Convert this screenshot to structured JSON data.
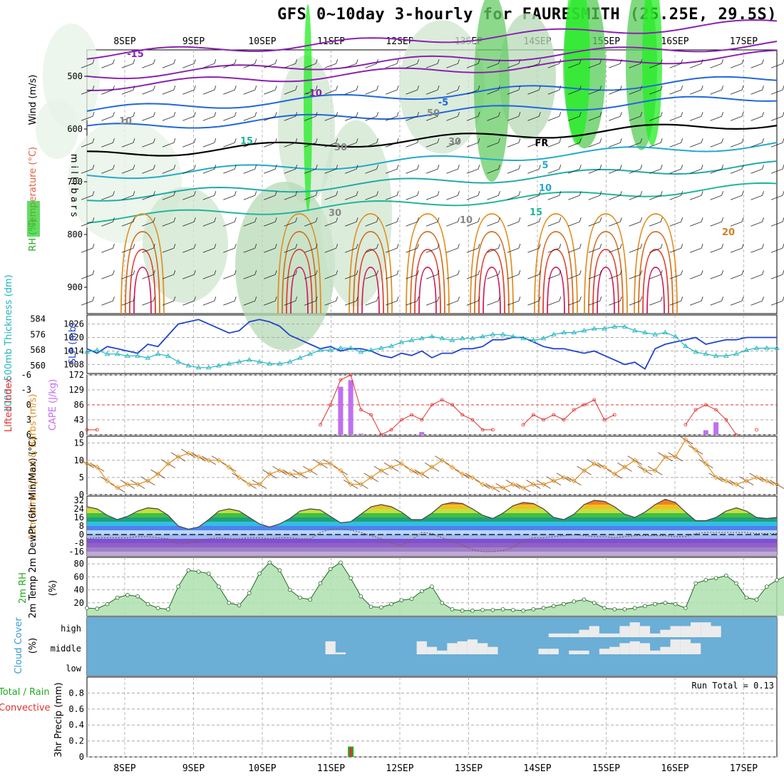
{
  "header": {
    "title": "GFS 0~10day 3-hourly for FAURESMITH (25.25E, 29.5S)"
  },
  "colors": {
    "slp": "#2244cc",
    "thickness": "#22b5c0",
    "lifted": "#e03030",
    "cape": "#c070f0",
    "wind10": "#e09020",
    "barb": "#7a5030",
    "rh2m": "#22aa22",
    "cloud_bg": "#6baed6",
    "cloud_fill": "#ececec",
    "rain_total": "#22aa22",
    "rain_conv": "#e03030",
    "temp_purple": "#8040c0",
    "freezing": "#000000"
  },
  "icons": {
    "rh_legend": "rh-color-swatch-icon"
  },
  "chart_data": [
    {
      "id": "upper",
      "type": "heatmap",
      "x_dates": [
        "8SEP",
        "9SEP",
        "10SEP",
        "11SEP",
        "12SEP",
        "13SEP",
        "14SEP",
        "15SEP",
        "16SEP",
        "17SEP"
      ],
      "ylim": [
        950,
        450
      ],
      "yticks": [
        500,
        600,
        700,
        800,
        900
      ],
      "ylabel_left": [
        "RH (%)",
        "Temperature (°C)",
        "Wind (m/s)"
      ],
      "ylabel_right": "millibars",
      "annotations": [
        "-15",
        "-10",
        "-5",
        "FR",
        "5",
        "10",
        "15",
        "20",
        "15",
        "10",
        "30",
        "30",
        "50",
        "30",
        "10"
      ]
    },
    {
      "id": "slp",
      "type": "line",
      "ylabel_left": "1000~500mb Thickness (dm)",
      "ylabel_right": "SLP (mb)",
      "yticks_left": [
        560,
        568,
        576,
        584
      ],
      "yticks_right": [
        1008,
        1014,
        1020,
        1026
      ],
      "series": [
        {
          "name": "SLP (mb)",
          "values": [
            1015,
            1013,
            1016,
            1015,
            1014,
            1013,
            1017,
            1016,
            1021,
            1026,
            1027,
            1028,
            1026,
            1024,
            1022,
            1023,
            1027,
            1028,
            1027,
            1025,
            1021,
            1019,
            1017,
            1015,
            1016,
            1014,
            1015,
            1015,
            1014,
            1012,
            1011,
            1013,
            1012,
            1014,
            1011,
            1013,
            1013,
            1015,
            1015,
            1016,
            1019,
            1019,
            1020,
            1020,
            1018,
            1016,
            1015,
            1015,
            1014,
            1013,
            1014,
            1012,
            1010,
            1008,
            1009,
            1006,
            1015,
            1017,
            1018,
            1019,
            1020,
            1017,
            1018,
            1019,
            1019,
            1020,
            1020,
            1020,
            1020
          ]
        },
        {
          "name": "1000~500mb Thickness (dm)",
          "values": [
            567,
            568,
            566,
            566,
            565,
            565,
            564,
            566,
            565,
            562,
            560,
            559,
            559,
            560,
            561,
            562,
            563,
            562,
            561,
            561,
            562,
            564,
            566,
            568,
            568,
            569,
            569,
            567,
            568,
            569,
            570,
            572,
            573,
            574,
            575,
            574,
            573,
            574,
            574,
            575,
            576,
            576,
            575,
            574,
            573,
            574,
            576,
            577,
            577,
            578,
            579,
            579,
            580,
            580,
            578,
            577,
            576,
            577,
            575,
            570,
            567,
            566,
            565,
            565,
            566,
            568,
            569,
            569,
            569
          ]
        }
      ]
    },
    {
      "id": "cape",
      "type": "bar",
      "ylabel_left": "Lifted Index",
      "ylabel_right": "CAPE (J/kg)",
      "yticks_left": [
        -6,
        -3,
        0,
        3,
        6
      ],
      "yticks_right": [
        0,
        43,
        86,
        129,
        172
      ],
      "series": [
        {
          "name": "Lifted Index",
          "values": [
            5,
            5,
            null,
            null,
            null,
            null,
            null,
            null,
            null,
            null,
            null,
            null,
            null,
            null,
            null,
            null,
            null,
            null,
            null,
            null,
            null,
            null,
            null,
            4,
            0,
            -5,
            -6,
            1,
            2,
            6,
            5,
            3,
            2,
            3,
            0,
            -1,
            0,
            2,
            3,
            5,
            5,
            null,
            null,
            4,
            2,
            3,
            2,
            3,
            1,
            0,
            -1,
            3,
            2,
            null,
            null,
            null,
            null,
            null,
            null,
            4,
            1,
            0,
            1,
            3,
            6,
            null,
            5,
            null,
            null
          ]
        },
        {
          "name": "CAPE (J/kg)",
          "values": [
            0,
            0,
            0,
            0,
            0,
            0,
            0,
            0,
            0,
            0,
            0,
            0,
            0,
            0,
            0,
            0,
            0,
            0,
            0,
            0,
            0,
            0,
            0,
            0,
            0,
            138,
            157,
            3,
            0,
            0,
            0,
            0,
            0,
            8,
            0,
            0,
            0,
            0,
            0,
            0,
            0,
            0,
            0,
            0,
            0,
            0,
            0,
            0,
            0,
            0,
            0,
            0,
            0,
            0,
            0,
            0,
            0,
            0,
            0,
            0,
            0,
            13,
            36,
            0,
            0,
            0,
            0,
            0,
            0
          ]
        }
      ]
    },
    {
      "id": "wind10",
      "type": "line",
      "ylabel_left": "10m Wind Speed & Barbs (m/s)",
      "yticks": [
        0,
        5,
        10,
        15
      ],
      "series": [
        {
          "name": "10m Wind Speed",
          "values": [
            9,
            8,
            4,
            2,
            3,
            3,
            4,
            6,
            9,
            11,
            12,
            11,
            10,
            10,
            8,
            5,
            3,
            3,
            6,
            7,
            6,
            6,
            7,
            9,
            9,
            7,
            3,
            3,
            5,
            7,
            8,
            9,
            7,
            6,
            8,
            10,
            8,
            6,
            5,
            3,
            2,
            2,
            3,
            2,
            3,
            3,
            4,
            5,
            4,
            7,
            9,
            8,
            6,
            8,
            10,
            7,
            7,
            11,
            11,
            16,
            13,
            9,
            5,
            4,
            3,
            4,
            5,
            4,
            3
          ]
        }
      ]
    },
    {
      "id": "temp2m",
      "type": "area",
      "ylabel_left": "2m Temp 2m DewPt (6hr Min/Max) (°C)",
      "yticks": [
        -16,
        -8,
        0,
        8,
        16,
        24,
        32
      ],
      "series": [
        {
          "name": "2m Temp",
          "values": [
            26,
            24,
            18,
            14,
            17,
            22,
            25,
            24,
            18,
            8,
            5,
            7,
            14,
            22,
            24,
            22,
            16,
            10,
            7,
            10,
            15,
            22,
            24,
            23,
            17,
            11,
            12,
            19,
            26,
            28,
            26,
            21,
            14,
            14,
            20,
            28,
            30,
            29,
            24,
            18,
            15,
            20,
            27,
            30,
            29,
            24,
            16,
            14,
            19,
            28,
            32,
            31,
            26,
            19,
            16,
            21,
            28,
            33,
            30,
            21,
            13,
            13,
            16,
            22,
            25,
            22,
            16,
            15,
            16
          ]
        },
        {
          "name": "2m DewPt",
          "values": [
            -4,
            -3,
            -3,
            -3,
            -3,
            -2,
            -2,
            -3,
            -4,
            -9,
            -8,
            -6,
            -4,
            -3,
            -4,
            -4,
            -3,
            -3,
            -4,
            -3,
            -3,
            -4,
            -4,
            2,
            5,
            6,
            4,
            2,
            -1,
            -4,
            -8,
            -10,
            -5,
            2,
            1,
            -3,
            -6,
            -10,
            -14,
            -16,
            -16,
            -15,
            -12,
            -6,
            -3,
            -3,
            -2,
            -1,
            0,
            -1,
            -2,
            -2,
            -3,
            -2,
            -1,
            -1,
            -1,
            -1,
            -2,
            -2,
            1,
            2,
            2,
            2,
            2,
            2,
            1,
            1,
            1
          ]
        }
      ]
    },
    {
      "id": "rh2m",
      "type": "area",
      "ylabel_left": "2m RH (%)",
      "yticks": [
        20,
        40,
        60,
        80
      ],
      "series": [
        {
          "name": "2m RH",
          "values": [
            12,
            11,
            18,
            28,
            32,
            30,
            18,
            12,
            10,
            45,
            70,
            68,
            65,
            45,
            20,
            16,
            35,
            65,
            82,
            70,
            40,
            28,
            25,
            50,
            72,
            82,
            58,
            30,
            14,
            13,
            18,
            24,
            26,
            38,
            45,
            20,
            10,
            8,
            8,
            9,
            9,
            10,
            9,
            8,
            10,
            12,
            15,
            18,
            22,
            25,
            20,
            12,
            10,
            10,
            12,
            15,
            18,
            20,
            18,
            12,
            50,
            55,
            58,
            62,
            50,
            28,
            25,
            45,
            55,
            62,
            40
          ]
        }
      ]
    },
    {
      "id": "cloud",
      "type": "bar",
      "ylabel_left": "Cloud Cover (%)",
      "yticks": [
        "high",
        "middle",
        "low"
      ],
      "series": [
        {
          "name": "high",
          "values": [
            0,
            0,
            0,
            0,
            0,
            0,
            0,
            0,
            0,
            0,
            0,
            0,
            0,
            0,
            0,
            0,
            0,
            0,
            0,
            0,
            0,
            0,
            0,
            0,
            0,
            0,
            0,
            0,
            0,
            0,
            0,
            0,
            0,
            0,
            0,
            0,
            0,
            0,
            0,
            0,
            0,
            0,
            0,
            0,
            0,
            0,
            20,
            20,
            20,
            40,
            60,
            20,
            20,
            60,
            80,
            60,
            20,
            40,
            60,
            60,
            80,
            80,
            60,
            0,
            0,
            0,
            0,
            0,
            0,
            0
          ]
        },
        {
          "name": "middle",
          "values": [
            0,
            0,
            0,
            0,
            0,
            0,
            0,
            0,
            0,
            0,
            0,
            0,
            0,
            0,
            0,
            0,
            0,
            0,
            0,
            0,
            0,
            0,
            0,
            0,
            70,
            10,
            0,
            0,
            0,
            0,
            0,
            0,
            0,
            70,
            40,
            20,
            60,
            70,
            80,
            60,
            40,
            0,
            0,
            0,
            0,
            30,
            30,
            0,
            20,
            20,
            0,
            30,
            40,
            60,
            70,
            60,
            20,
            40,
            80,
            80,
            60,
            0,
            0,
            0,
            0,
            0,
            0,
            0,
            0,
            0
          ]
        },
        {
          "name": "low",
          "values": [
            0
          ]
        }
      ]
    },
    {
      "id": "precip",
      "type": "bar",
      "ylabel_left": "Total / Rain Convective 3hr Precip (mm)",
      "yticks": [
        0,
        0.2,
        0.4,
        0.6,
        0.8
      ],
      "run_total": "Run Total = 0.13",
      "series": [
        {
          "name": "Total / Rain",
          "values": [
            0,
            0,
            0,
            0,
            0,
            0,
            0,
            0,
            0,
            0,
            0,
            0,
            0,
            0,
            0,
            0,
            0,
            0,
            0,
            0,
            0,
            0,
            0,
            0,
            0,
            0,
            0.13,
            0,
            0,
            0,
            0,
            0,
            0,
            0,
            0,
            0,
            0,
            0,
            0,
            0,
            0,
            0,
            0,
            0,
            0,
            0,
            0,
            0,
            0,
            0,
            0,
            0,
            0,
            0,
            0,
            0,
            0,
            0,
            0,
            0,
            0,
            0,
            0,
            0,
            0,
            0,
            0,
            0,
            0
          ]
        },
        {
          "name": "Convective",
          "values": [
            0,
            0,
            0,
            0,
            0,
            0,
            0,
            0,
            0,
            0,
            0,
            0,
            0,
            0,
            0,
            0,
            0,
            0,
            0,
            0,
            0,
            0,
            0,
            0,
            0,
            0,
            0.12,
            0,
            0,
            0,
            0,
            0,
            0,
            0,
            0,
            0,
            0,
            0,
            0,
            0,
            0,
            0,
            0,
            0,
            0,
            0,
            0,
            0,
            0,
            0,
            0,
            0,
            0,
            0,
            0,
            0,
            0,
            0,
            0,
            0,
            0,
            0,
            0,
            0,
            0,
            0,
            0,
            0,
            0
          ]
        }
      ]
    }
  ]
}
